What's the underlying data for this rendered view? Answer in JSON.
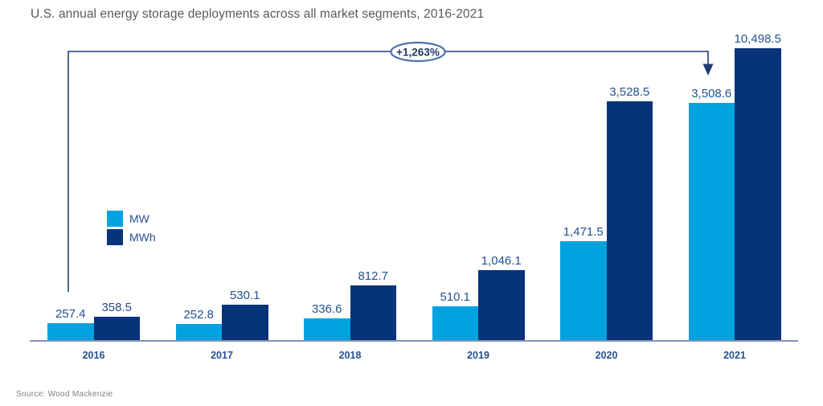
{
  "title": "U.S. annual energy storage deployments across all market segments, 2016-2021",
  "source": "Source: Wood Mackenzie",
  "annotation": {
    "label": "+1,263%"
  },
  "colors": {
    "mw": "#00A3E0",
    "mwh": "#07337A",
    "label_text": "#24508F",
    "annotation_line": "#1F3E78",
    "annotation_ellipse_stroke": "#4C72B0",
    "axis_line": "#8293B8",
    "title_text": "#595959",
    "source_text": "#7F7F7F"
  },
  "legend": [
    {
      "name": "MW",
      "color": "#00A3E0"
    },
    {
      "name": "MWh",
      "color": "#07337A"
    }
  ],
  "chart_data": {
    "type": "bar",
    "title": "U.S. annual energy storage deployments across all market segments, 2016-2021",
    "categories": [
      "2016",
      "2017",
      "2018",
      "2019",
      "2020",
      "2021"
    ],
    "series": [
      {
        "name": "MW",
        "color": "#00A3E0",
        "values": [
          257.4,
          252.8,
          336.6,
          510.1,
          1471.5,
          3508.6
        ]
      },
      {
        "name": "MWh",
        "color": "#07337A",
        "values": [
          358.5,
          530.1,
          812.7,
          1046.1,
          3528.5,
          10498.5
        ]
      }
    ],
    "value_labels": [
      [
        "257.4",
        "252.8",
        "336.6",
        "510.1",
        "1,471.5",
        "3,508.6"
      ],
      [
        "358.5",
        "530.1",
        "812.7",
        "1,046.1",
        "3,528.5",
        "10,498.5"
      ]
    ],
    "annotations": [
      {
        "text": "+1,263%",
        "meaning": "growth from 2016 to 2021"
      }
    ],
    "legend_position": "middle-left",
    "grid": false,
    "note": "2021 MWh bar is visually clipped at the top of the plot area",
    "xlabel": "",
    "ylabel": ""
  }
}
